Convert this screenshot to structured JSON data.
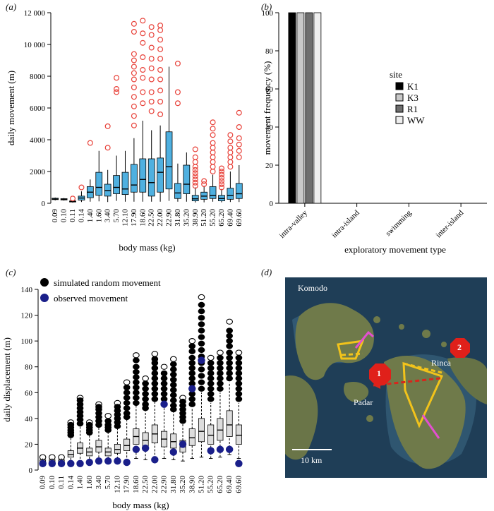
{
  "colors": {
    "box_blue": "#4fb0e0",
    "outlier_red": "#e8423a",
    "box_grey": "#dddddd",
    "observed_blue": "#1a1f8a",
    "simulated_black": "#000000",
    "k1": "#000000",
    "k3": "#c8c8c8",
    "r1": "#6e6e6e",
    "ww": "#eeeeee",
    "map_sea": "#1f3e57",
    "map_land": "#6f7a4a",
    "route_yellow": "#f2c31b",
    "route_red": "#d8261c",
    "route_magenta": "#e34fd0"
  },
  "chart_data": [
    {
      "panel": "(a)",
      "type": "boxplot",
      "xlabel": "body mass (kg)",
      "ylabel": "daily movement (m)",
      "ylim": [
        0,
        12000
      ],
      "yticks": [
        "0",
        "2000",
        "4000",
        "6000",
        "8000",
        "10 000",
        "12 000"
      ],
      "ytick_values": [
        0,
        2000,
        4000,
        6000,
        8000,
        10000,
        12000
      ],
      "categories": [
        "0.09",
        "0.10",
        "0.11",
        "0.14",
        "1.40",
        "1.60",
        "3.40",
        "5.70",
        "12.10",
        "17.90",
        "18.60",
        "22.50",
        "22.00",
        "22.90",
        "31.80",
        "35.20",
        "38.90",
        "51.20",
        "55.20",
        "65.20",
        "69.40",
        "69.60"
      ],
      "boxes": [
        {
          "min": 180,
          "q1": 230,
          "median": 270,
          "q3": 320,
          "max": 360,
          "outliers": []
        },
        {
          "min": 170,
          "q1": 210,
          "median": 250,
          "q3": 290,
          "max": 330,
          "outliers": []
        },
        {
          "min": 40,
          "q1": 80,
          "median": 110,
          "q3": 150,
          "max": 180,
          "outliers": [
            300
          ]
        },
        {
          "min": 80,
          "q1": 200,
          "median": 330,
          "q3": 450,
          "max": 750,
          "outliers": [
            1000
          ]
        },
        {
          "min": 100,
          "q1": 350,
          "median": 700,
          "q3": 1050,
          "max": 1500,
          "outliers": [
            3800
          ]
        },
        {
          "min": 120,
          "q1": 500,
          "median": 1000,
          "q3": 1950,
          "max": 3300,
          "outliers": []
        },
        {
          "min": 80,
          "q1": 450,
          "median": 800,
          "q3": 1200,
          "max": 2100,
          "outliers": [
            3500,
            4850
          ]
        },
        {
          "min": 150,
          "q1": 600,
          "median": 1000,
          "q3": 1750,
          "max": 3000,
          "outliers": [
            7000,
            7200,
            7900
          ]
        },
        {
          "min": 100,
          "q1": 550,
          "median": 900,
          "q3": 1950,
          "max": 3300,
          "outliers": []
        },
        {
          "min": 100,
          "q1": 700,
          "median": 1150,
          "q3": 2450,
          "max": 4100,
          "outliers": [
            4900,
            5500,
            6100,
            6700,
            7300,
            7800,
            8200,
            8600,
            9000,
            9400,
            10800,
            11300
          ]
        },
        {
          "min": 100,
          "q1": 700,
          "median": 1500,
          "q3": 2800,
          "max": 5200,
          "outliers": [
            6300,
            7000,
            7900,
            8400,
            9200,
            10100,
            10700,
            11500
          ]
        },
        {
          "min": 100,
          "q1": 450,
          "median": 1300,
          "q3": 2800,
          "max": 4600,
          "outliers": [
            5800,
            6400,
            7000,
            7800,
            8500,
            9100,
            9800,
            10600,
            11100
          ]
        },
        {
          "min": 100,
          "q1": 700,
          "median": 1950,
          "q3": 2850,
          "max": 4900,
          "outliers": [
            5600,
            6400,
            7100,
            7800,
            8400,
            9100,
            9700,
            10300,
            10900,
            11200
          ]
        },
        {
          "min": 150,
          "q1": 900,
          "median": 2300,
          "q3": 4500,
          "max": 8600,
          "outliers": []
        },
        {
          "min": 100,
          "q1": 300,
          "median": 650,
          "q3": 1250,
          "max": 2500,
          "outliers": [
            6300,
            7000,
            8800
          ]
        },
        {
          "min": 100,
          "q1": 600,
          "median": 1200,
          "q3": 2400,
          "max": 3200,
          "outliers": []
        },
        {
          "min": 50,
          "q1": 150,
          "median": 280,
          "q3": 500,
          "max": 1000,
          "outliers": [
            1100,
            1300,
            1500,
            1700,
            1900,
            2100,
            2300,
            2600,
            2900,
            3400
          ]
        },
        {
          "min": 60,
          "q1": 250,
          "median": 450,
          "q3": 700,
          "max": 1100,
          "outliers": [
            1200,
            1400
          ]
        },
        {
          "min": 100,
          "q1": 300,
          "median": 500,
          "q3": 1050,
          "max": 1800,
          "outliers": [
            2000,
            2300,
            2600,
            2900,
            3200,
            3500,
            3800,
            4300,
            4700,
            5100
          ]
        },
        {
          "min": 60,
          "q1": 150,
          "median": 300,
          "q3": 500,
          "max": 900,
          "outliers": [
            1000,
            1200,
            1400,
            1600,
            1800,
            2000,
            2200
          ]
        },
        {
          "min": 80,
          "q1": 250,
          "median": 500,
          "q3": 950,
          "max": 2000,
          "outliers": [
            2300,
            2600,
            2900,
            3200,
            3500,
            3900,
            4300
          ]
        },
        {
          "min": 80,
          "q1": 300,
          "median": 600,
          "q3": 1250,
          "max": 2400,
          "outliers": [
            2900,
            3300,
            3700,
            4100,
            4800,
            5700
          ]
        }
      ]
    },
    {
      "panel": "(b)",
      "type": "bar",
      "xlabel": "exploratory movement type",
      "ylabel": "movement frequency (%)",
      "ylim": [
        0,
        100
      ],
      "yticks": [
        "0",
        "20",
        "40",
        "60",
        "80",
        "100"
      ],
      "ytick_values": [
        0,
        20,
        40,
        60,
        80,
        100
      ],
      "categories": [
        "intra-valley",
        "intra-island",
        "swimming",
        "inter-island"
      ],
      "legend_title": "site",
      "legend_position": "right",
      "series": [
        {
          "name": "K1",
          "values": [
            100,
            0,
            0,
            0
          ]
        },
        {
          "name": "K3",
          "values": [
            100,
            0,
            0,
            0
          ]
        },
        {
          "name": "R1",
          "values": [
            100,
            0,
            0,
            0
          ]
        },
        {
          "name": "WW",
          "values": [
            100,
            0,
            0,
            0
          ]
        }
      ]
    },
    {
      "panel": "(c)",
      "type": "boxplot",
      "xlabel": "body mass (kg)",
      "ylabel": "daily displacement (m)",
      "ylim": [
        0,
        140
      ],
      "yticks": [
        "0",
        "20",
        "40",
        "60",
        "80",
        "100",
        "120",
        "140"
      ],
      "ytick_values": [
        0,
        20,
        40,
        60,
        80,
        100,
        120,
        140
      ],
      "legend": [
        "simulated random movement",
        "observed movement"
      ],
      "legend_position": "top-left",
      "categories": [
        "0.09",
        "0.10",
        "0.11",
        "0.14",
        "1.40",
        "1.60",
        "3.40",
        "5.70",
        "12.10",
        "17.90",
        "18.60",
        "22.50",
        "22.00",
        "22.90",
        "31.80",
        "35.20",
        "38.90",
        "51.20",
        "55.20",
        "65.20",
        "69.40",
        "69.60"
      ],
      "boxes": [
        {
          "min": 5,
          "q1": 6,
          "median": 7,
          "q3": 8,
          "max": 9,
          "outliers": [
            10
          ]
        },
        {
          "min": 5,
          "q1": 6,
          "median": 7,
          "q3": 8,
          "max": 9,
          "outliers": [
            10
          ]
        },
        {
          "min": 5,
          "q1": 6,
          "median": 7,
          "q3": 8,
          "max": 9,
          "outliers": [
            10
          ]
        },
        {
          "min": 5,
          "q1": 10,
          "median": 12,
          "q3": 15,
          "max": 25,
          "outliers": [
            27,
            29,
            31,
            33,
            35,
            37
          ]
        },
        {
          "min": 6,
          "q1": 13,
          "median": 17,
          "q3": 21,
          "max": 35,
          "outliers": [
            36,
            39,
            42,
            45,
            48,
            51,
            54,
            56
          ]
        },
        {
          "min": 6,
          "q1": 11,
          "median": 14,
          "q3": 17,
          "max": 28,
          "outliers": [
            29,
            31,
            33,
            35,
            37
          ]
        },
        {
          "min": 7,
          "q1": 14,
          "median": 18,
          "q3": 23,
          "max": 34,
          "outliers": [
            35,
            38,
            41,
            44,
            47,
            49,
            51
          ]
        },
        {
          "min": 6,
          "q1": 11,
          "median": 14,
          "q3": 17,
          "max": 29,
          "outliers": [
            31,
            33,
            35,
            38,
            42
          ]
        },
        {
          "min": 6,
          "q1": 13,
          "median": 16,
          "q3": 20,
          "max": 32,
          "outliers": [
            34,
            37,
            40,
            43,
            46,
            49,
            52
          ]
        },
        {
          "min": 7,
          "q1": 15,
          "median": 19,
          "q3": 24,
          "max": 39,
          "outliers": [
            41,
            44,
            48,
            52,
            56,
            60,
            64,
            68
          ]
        },
        {
          "min": 9,
          "q1": 20,
          "median": 26,
          "q3": 32,
          "max": 50,
          "outliers": [
            52,
            56,
            60,
            64,
            68,
            72,
            76,
            80,
            85,
            89
          ]
        },
        {
          "min": 8,
          "q1": 17,
          "median": 23,
          "q3": 29,
          "max": 46,
          "outliers": [
            48,
            51,
            55,
            59,
            63,
            67,
            71
          ]
        },
        {
          "min": 9,
          "q1": 21,
          "median": 28,
          "q3": 35,
          "max": 53,
          "outliers": [
            55,
            59,
            63,
            67,
            71,
            75,
            79,
            83,
            86,
            90
          ]
        },
        {
          "min": 9,
          "q1": 18,
          "median": 24,
          "q3": 30,
          "max": 49,
          "outliers": [
            51,
            55,
            59,
            63,
            67,
            71,
            75,
            80
          ]
        },
        {
          "min": 8,
          "q1": 17,
          "median": 22,
          "q3": 28,
          "max": 45,
          "outliers": [
            47,
            50,
            54,
            58,
            62,
            66,
            70,
            74,
            78,
            82,
            86
          ]
        },
        {
          "min": 7,
          "q1": 14,
          "median": 18,
          "q3": 23,
          "max": 36,
          "outliers": [
            38,
            41,
            44,
            47,
            50,
            53,
            56
          ]
        },
        {
          "min": 9,
          "q1": 19,
          "median": 25,
          "q3": 32,
          "max": 48,
          "outliers": [
            51,
            55,
            59,
            63,
            67,
            71,
            75,
            79,
            83,
            87,
            92,
            96,
            100
          ]
        },
        {
          "min": 10,
          "q1": 22,
          "median": 30,
          "q3": 40,
          "max": 60,
          "outliers": [
            63,
            68,
            73,
            78,
            83,
            88,
            93,
            98,
            103,
            108,
            113,
            118,
            123,
            128,
            134
          ]
        },
        {
          "min": 9,
          "q1": 20,
          "median": 27,
          "q3": 35,
          "max": 52,
          "outliers": [
            55,
            59,
            63,
            67,
            71,
            75,
            79,
            83,
            87
          ]
        },
        {
          "min": 10,
          "q1": 23,
          "median": 31,
          "q3": 40,
          "max": 60,
          "outliers": [
            63,
            67,
            71,
            75,
            79,
            83,
            87,
            91
          ]
        },
        {
          "min": 12,
          "q1": 26,
          "median": 35,
          "q3": 46,
          "max": 68,
          "outliers": [
            71,
            75,
            79,
            83,
            87,
            91,
            96,
            100,
            104,
            108,
            115
          ]
        },
        {
          "min": 9,
          "q1": 20,
          "median": 27,
          "q3": 35,
          "max": 52,
          "outliers": [
            55,
            59,
            63,
            67,
            71,
            75,
            79,
            83,
            87,
            91
          ]
        }
      ],
      "observed": [
        5,
        5,
        5,
        5,
        5,
        6,
        7,
        7,
        7,
        6,
        16,
        17,
        8,
        51,
        14,
        20,
        63,
        85,
        15,
        16,
        16,
        5
      ]
    }
  ],
  "labels": {
    "panel_a": "(a)",
    "panel_b": "(b)",
    "panel_c": "(c)",
    "panel_d": "(d)"
  },
  "map": {
    "title": "Komodo",
    "places": [
      "Rinca",
      "Padar"
    ],
    "markers": [
      "1",
      "2"
    ],
    "scale_label": "10 km"
  }
}
